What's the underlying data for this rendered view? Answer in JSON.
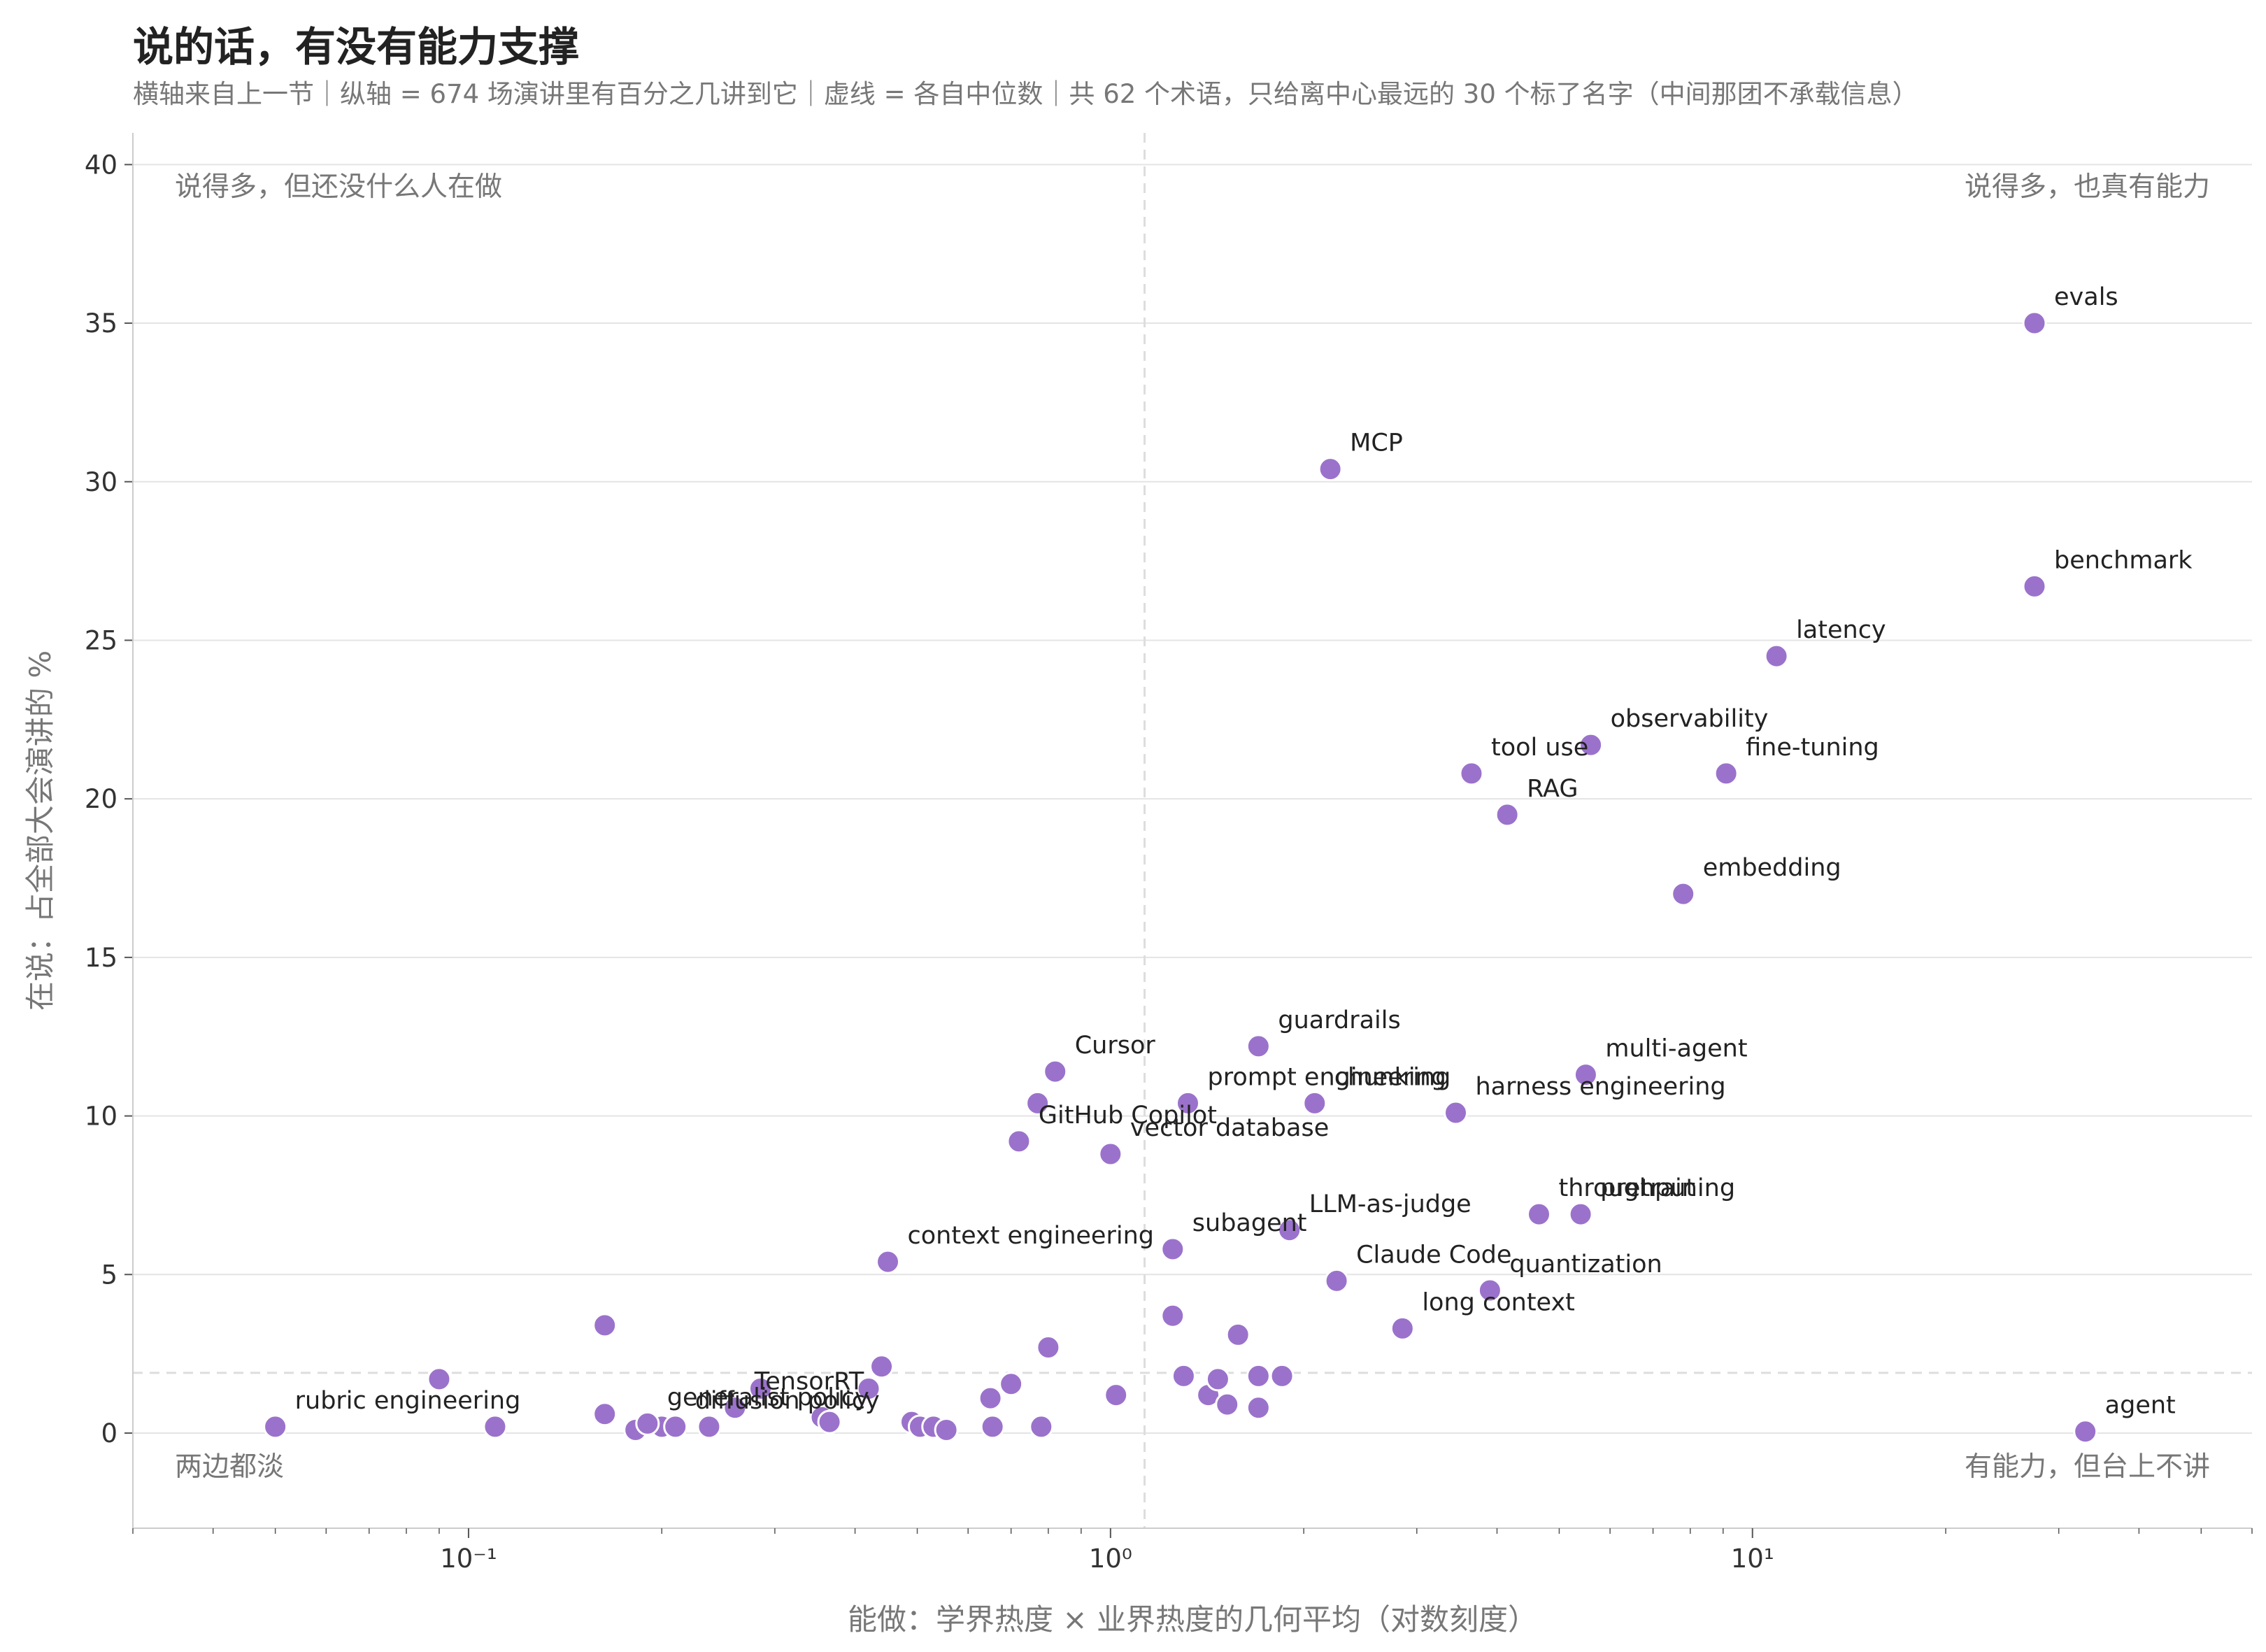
{
  "title": "说的话，有没有能力支撑",
  "subtitle": "横轴来自上一节｜纵轴 = 674 场演讲里有百分之几讲到它｜虚线 = 各自中位数｜共 62 个术语，只给离中心最远的 30 个标了名字（中间那团不承载信息）",
  "colors": {
    "point": "#9b72cb",
    "grid": "#e4e4e4",
    "median": "#dddddd",
    "text": "#222222",
    "muted": "#777777"
  },
  "chart_data": {
    "type": "scatter",
    "xscale": "log",
    "xlim": [
      0.03,
      60
    ],
    "ylim": [
      -3,
      41
    ],
    "x_ticks": [
      0.1,
      1,
      10
    ],
    "x_tick_labels": [
      "10⁻¹",
      "10⁰",
      "10¹"
    ],
    "y_ticks": [
      0,
      5,
      10,
      15,
      20,
      25,
      30,
      35,
      40
    ],
    "y_tick_labels": [
      "0",
      "5",
      "10",
      "15",
      "20",
      "25",
      "30",
      "35",
      "40"
    ],
    "xlabel": "能做：学界热度 × 业界热度的几何平均（对数刻度）",
    "ylabel": "在说：占全部大会演讲的 %",
    "median_x": 1.13,
    "median_y": 1.9,
    "grid": true,
    "quadrant_labels": {
      "top_left": "说得多，但还没什么人在做",
      "top_right": "说得多，也真有能力",
      "bottom_left": "两边都淡",
      "bottom_right": "有能力，但台上不讲"
    },
    "labeled_points": [
      {
        "name": "evals",
        "x": 27.5,
        "y": 35.0
      },
      {
        "name": "MCP",
        "x": 2.2,
        "y": 30.4
      },
      {
        "name": "benchmark",
        "x": 27.5,
        "y": 26.7
      },
      {
        "name": "latency",
        "x": 10.9,
        "y": 24.5
      },
      {
        "name": "observability",
        "x": 5.6,
        "y": 21.7
      },
      {
        "name": "tool use",
        "x": 3.65,
        "y": 20.8
      },
      {
        "name": "fine-tuning",
        "x": 9.1,
        "y": 20.8
      },
      {
        "name": "RAG",
        "x": 4.15,
        "y": 19.5
      },
      {
        "name": "embedding",
        "x": 7.8,
        "y": 17.0
      },
      {
        "name": "guardrails",
        "x": 1.7,
        "y": 12.2
      },
      {
        "name": "Cursor",
        "x": 0.82,
        "y": 11.4
      },
      {
        "name": "multi-agent",
        "x": 5.5,
        "y": 11.3
      },
      {
        "name": "chunking",
        "x": 2.08,
        "y": 10.4
      },
      {
        "name": "harness engineering",
        "x": 3.45,
        "y": 10.1
      },
      {
        "name": "vector database",
        "x": 1.0,
        "y": 8.8
      },
      {
        "name": "prompt engineering",
        "x": 1.32,
        "y": 10.4
      },
      {
        "name": "GitHub Copilot",
        "x": 0.72,
        "y": 9.2
      },
      {
        "name": "subagent",
        "x": 1.25,
        "y": 5.8
      },
      {
        "name": "LLM-as-judge",
        "x": 1.9,
        "y": 6.4
      },
      {
        "name": "pretraining",
        "x": 5.4,
        "y": 6.9
      },
      {
        "name": "context engineering",
        "x": 0.45,
        "y": 5.4
      },
      {
        "name": "Claude Code",
        "x": 2.25,
        "y": 4.8
      },
      {
        "name": "throughput",
        "x": 4.65,
        "y": 6.9
      },
      {
        "name": "long context",
        "x": 2.85,
        "y": 3.3
      },
      {
        "name": "quantization",
        "x": 3.9,
        "y": 4.5
      },
      {
        "name": "TensorRT",
        "x": 0.26,
        "y": 0.8
      },
      {
        "name": "generalist policy",
        "x": 0.19,
        "y": 0.3
      },
      {
        "name": "rubric engineering",
        "x": 0.05,
        "y": 0.2
      },
      {
        "name": "diffusion policy",
        "x": 0.21,
        "y": 0.2
      },
      {
        "name": "agent",
        "x": 33.0,
        "y": 0.05
      }
    ],
    "unlabeled_points": [
      {
        "x": 0.09,
        "y": 1.7
      },
      {
        "x": 0.11,
        "y": 0.2
      },
      {
        "x": 0.163,
        "y": 3.4
      },
      {
        "x": 0.163,
        "y": 0.6
      },
      {
        "x": 0.182,
        "y": 0.1
      },
      {
        "x": 0.2,
        "y": 0.2
      },
      {
        "x": 0.237,
        "y": 0.2
      },
      {
        "x": 0.285,
        "y": 1.4
      },
      {
        "x": 0.355,
        "y": 0.5
      },
      {
        "x": 0.365,
        "y": 0.35
      },
      {
        "x": 0.42,
        "y": 1.4
      },
      {
        "x": 0.44,
        "y": 2.1
      },
      {
        "x": 0.49,
        "y": 0.35
      },
      {
        "x": 0.505,
        "y": 0.2
      },
      {
        "x": 0.53,
        "y": 0.2
      },
      {
        "x": 0.555,
        "y": 0.1
      },
      {
        "x": 0.65,
        "y": 1.1
      },
      {
        "x": 0.655,
        "y": 0.2
      },
      {
        "x": 0.7,
        "y": 1.55
      },
      {
        "x": 0.77,
        "y": 10.4
      },
      {
        "x": 0.78,
        "y": 0.2
      },
      {
        "x": 0.8,
        "y": 2.7
      },
      {
        "x": 1.02,
        "y": 1.2
      },
      {
        "x": 1.25,
        "y": 3.7
      },
      {
        "x": 1.3,
        "y": 1.8
      },
      {
        "x": 1.42,
        "y": 1.2
      },
      {
        "x": 1.47,
        "y": 1.7
      },
      {
        "x": 1.52,
        "y": 0.9
      },
      {
        "x": 1.58,
        "y": 3.1
      },
      {
        "x": 1.7,
        "y": 1.8
      },
      {
        "x": 1.7,
        "y": 0.8
      },
      {
        "x": 1.85,
        "y": 1.8
      }
    ]
  }
}
